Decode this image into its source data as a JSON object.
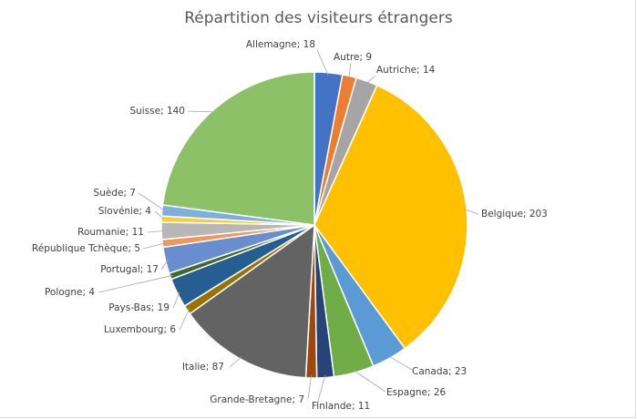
{
  "chart_data": {
    "type": "pie",
    "title": "Répartition des visiteurs étrangers",
    "slices": [
      {
        "label": "Allemagne",
        "value": 18,
        "color": "#4472c4"
      },
      {
        "label": "Autre",
        "value": 9,
        "color": "#ed7d31"
      },
      {
        "label": "Autriche",
        "value": 14,
        "color": "#a5a5a5"
      },
      {
        "label": "Belgique",
        "value": 203,
        "color": "#ffc000"
      },
      {
        "label": "Canada",
        "value": 23,
        "color": "#5b9bd5"
      },
      {
        "label": "Espagne",
        "value": 26,
        "color": "#70ad47"
      },
      {
        "label": "Finlande",
        "value": 11,
        "color": "#264478"
      },
      {
        "label": "Grande-Bretagne",
        "value": 7,
        "color": "#9e480e"
      },
      {
        "label": "Italie",
        "value": 87,
        "color": "#636363"
      },
      {
        "label": "Luxembourg",
        "value": 6,
        "color": "#997300"
      },
      {
        "label": "Pays-Bas",
        "value": 19,
        "color": "#255e91"
      },
      {
        "label": "Pologne",
        "value": 4,
        "color": "#43682b"
      },
      {
        "label": "Portugal",
        "value": 17,
        "color": "#698ed0"
      },
      {
        "label": "République Tchèque",
        "value": 5,
        "color": "#f1975a"
      },
      {
        "label": "Roumanie",
        "value": 11,
        "color": "#b7b7b7"
      },
      {
        "label": "Slovénie",
        "value": 4,
        "color": "#ffcd33"
      },
      {
        "label": "Suède",
        "value": 7,
        "color": "#7cafdd"
      },
      {
        "label": "Suisse",
        "value": 140,
        "color": "#8cc168"
      }
    ],
    "data_label_separator": "; ",
    "legend": "none"
  }
}
